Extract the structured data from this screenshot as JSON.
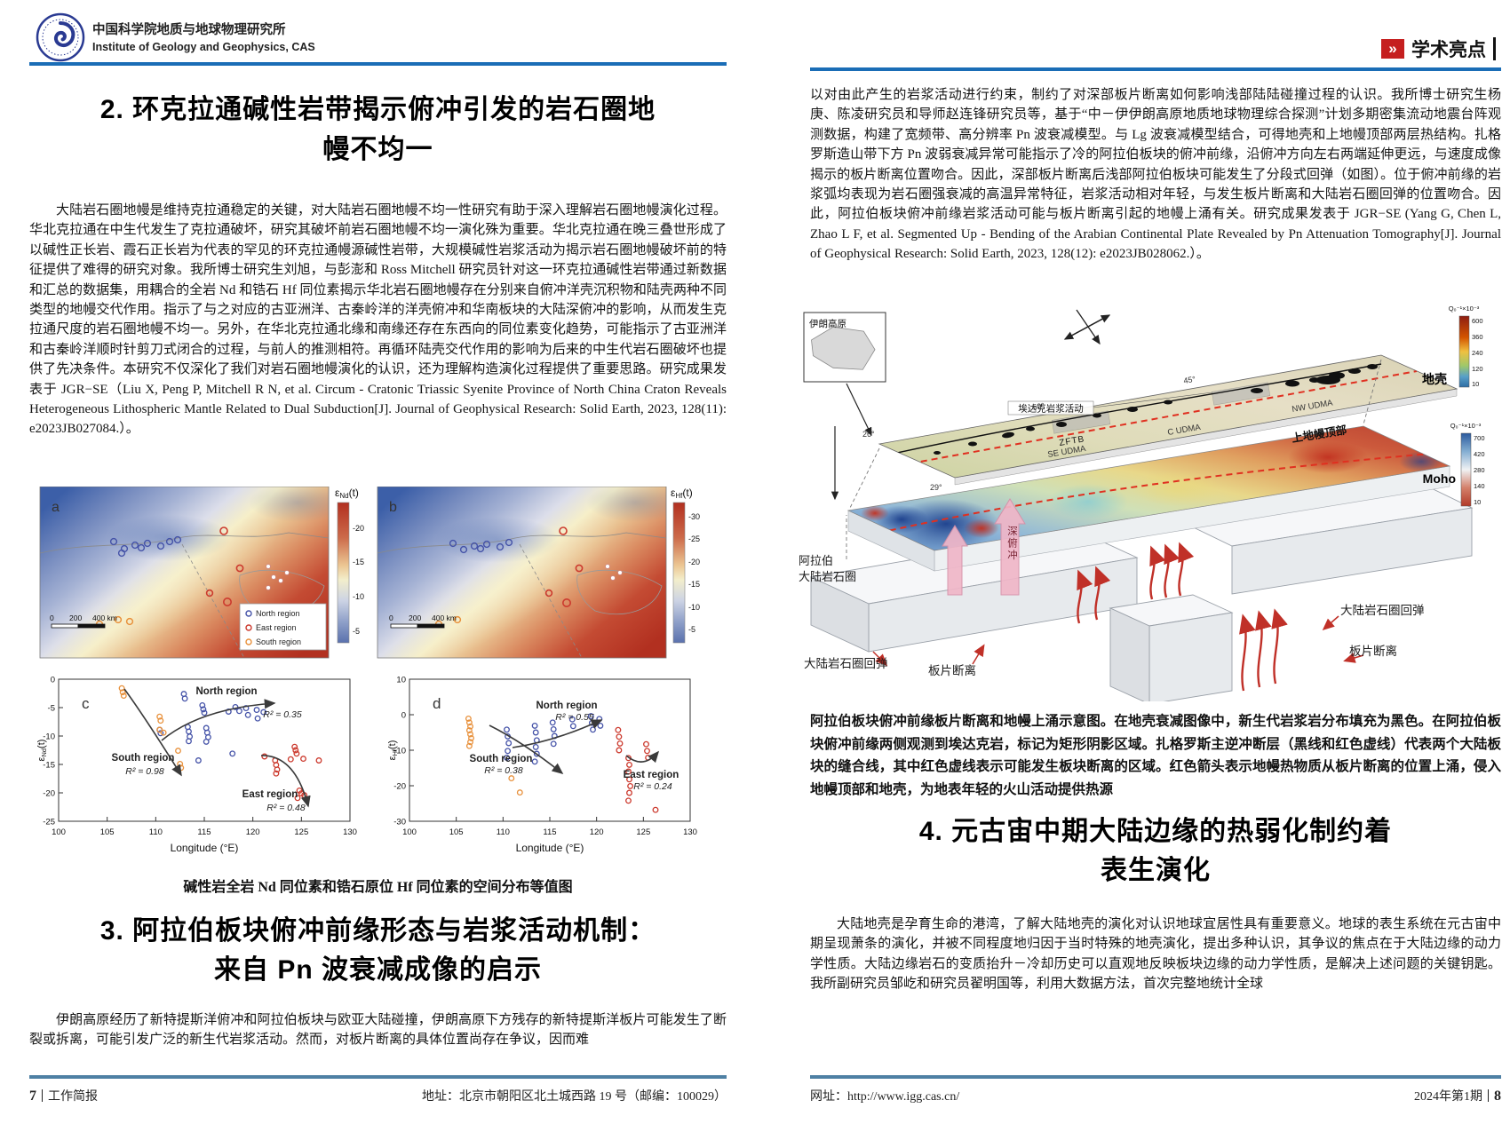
{
  "page_left": {
    "header": {
      "org_cn": "中国科学院地质与地球物理研究所",
      "org_en": "Institute of Geology and Geophysics, CAS"
    },
    "section2": {
      "title_line1": "2. 环克拉通碱性岩带揭示俯冲引发的岩石圈地",
      "title_line2": "幔不均一",
      "paragraph": "大陆岩石圈地幔是维持克拉通稳定的关键，对大陆岩石圈地幔不均一性研究有助于深入理解岩石圈地幔演化过程。华北克拉通在中生代发生了克拉通破坏，研究其破坏前岩石圈地幔不均一演化殊为重要。华北克拉通在晚三叠世形成了以碱性正长岩、霞石正长岩为代表的罕见的环克拉通幔源碱性岩带，大规模碱性岩浆活动为揭示岩石圈地幔破坏前的特征提供了难得的研究对象。我所博士研究生刘旭，与彭澎和 Ross Mitchell 研究员针对这一环克拉通碱性岩带通过新数据和汇总的数据集，用耦合的全岩 Nd 和锆石 Hf 同位素揭示华北岩石圈地幔存在分别来自俯冲洋壳沉积物和陆壳两种不同类型的地幔交代作用。指示了与之对应的古亚洲洋、古秦岭洋的洋壳俯冲和华南板块的大陆深俯冲的影响，从而发生克拉通尺度的岩石圈地幔不均一。另外，在华北克拉通北缘和南缘还存在东西向的同位素变化趋势，可能指示了古亚洲洋和古秦岭洋顺时针剪刀式闭合的过程，与前人的推测相符。再循环陆壳交代作用的影响为后来的中生代岩石圈破坏也提供了先决条件。本研究不仅深化了我们对岩石圈地幔演化的认识，还为理解构造演化过程提供了重要思路。研究成果发表于 JGR−SE（Liu X, Peng P, Mitchell R N, et al. Circum - Cratonic Triassic Syenite Province of North China Craton Reveals Heterogeneous Lithospheric Mantle Related to Dual Subduction[J]. Journal of Geophysical Research: Solid Earth, 2023, 128(11): e2023JB027084.）。"
    },
    "figure": {
      "panel_a": "a",
      "panel_b": "b",
      "panel_c": "c",
      "panel_d": "d",
      "colorbar_a": {
        "ylabel_parts": {
          "eps": "ε",
          "sub": "Nd",
          "t": "(t)"
        },
        "ticks": [
          "-20",
          "-15",
          "-10",
          "-5"
        ]
      },
      "colorbar_b": {
        "ylabel_parts": {
          "eps": "ε",
          "sub": "Hf",
          "t": "(t)"
        },
        "ticks": [
          "-30",
          "-25",
          "-20",
          "-15",
          "-10",
          "-5"
        ]
      },
      "legend": {
        "north": "North region",
        "east": "East region",
        "south": "South region"
      },
      "scalebar": {
        "t0": "0",
        "t200": "200",
        "t400": "400 km"
      },
      "xlabel": "Longitude (°E)",
      "ylabel_c_parts": {
        "eps": "ε",
        "sub": "Nd",
        "t": "(t)"
      },
      "ylabel_d_parts": {
        "eps": "ε",
        "sub": "Hf",
        "t": "(t)"
      },
      "annotations_c": {
        "north": "North region",
        "north_r2": "R² = 0.35",
        "south": "South region",
        "south_r2": "R² = 0.98",
        "east": "East region",
        "east_r2": "R² = 0.48"
      },
      "annotations_d": {
        "north": "North region",
        "north_r2": "R² = 0.55",
        "south": "South region",
        "south_r2": "R² = 0.38",
        "east": "East region",
        "east_r2": "R² = 0.24"
      }
    },
    "figure_caption": "碱性岩全岩 Nd 同位素和锆石原位 Hf 同位素的空间分布等值图",
    "section3": {
      "title_line1": "3. 阿拉伯板块俯冲前缘形态与岩浆活动机制：",
      "title_line2": "来自 Pn 波衰减成像的启示",
      "paragraph": "伊朗高原经历了新特提斯洋俯冲和阿拉伯板块与欧亚大陆碰撞，伊朗高原下方残存的新特提斯洋板片可能发生了断裂或拆离，可能引发广泛的新生代岩浆活动。然而，对板片断离的具体位置尚存在争议，因而难"
    },
    "footer": {
      "page_no": "7",
      "label": "工作简报",
      "address": "地址：北京市朝阳区北土城西路 19 号（邮编：100029）"
    }
  },
  "page_right": {
    "header": {
      "badge_glyph": "»",
      "label": "学术亮点"
    },
    "paragraph1": "以对由此产生的岩浆活动进行约束，制约了对深部板片断离如何影响浅部陆陆碰撞过程的认识。我所博士研究生杨庚、陈凌研究员和导师赵连锋研究员等，基于“中－伊伊朗高原地质地球物理综合探测”计划多期密集流动地震台阵观测数据，构建了宽频带、高分辨率 Pn 波衰减模型。与 Lg 波衰减模型结合，可得地壳和上地幔顶部两层热结构。扎格罗斯造山带下方 Pn 波弱衰减异常可能指示了冷的阿拉伯板块的俯冲前缘，沿俯冲方向左右两端延伸更远，与速度成像揭示的板片断离位置吻合。因此，深部板片断离后浅部阿拉伯板块可能发生了分段式回弹（如图）。位于俯冲前缘的岩浆弧均表现为岩石圈强衰减的高温异常特征，岩浆活动相对年轻，与发生板片断离和大陆岩石圈回弹的位置吻合。因此，阿拉伯板块俯冲前缘岩浆活动可能与板片断离引起的地幔上涌有关。研究成果发表于 JGR−SE (Yang G, Chen L, Zhao L F, et al. Segmented Up - Bending of the Arabian Continental Plate Revealed by Pn Attenuation Tomography[J]. Journal of Geophysical Research: Solid Earth, 2023, 128(12): e2023JB028062.）。",
    "figure3d": {
      "inset_label": "伊朗高原",
      "crust_label": "地壳",
      "zftb": "ZFTB",
      "adakite": "埃达克岩浆活动",
      "udma_se": "SE UDMA",
      "udma_c": "C UDMA",
      "udma_nw": "NW UDMA",
      "moho": "Moho",
      "mantle_top": "上地幔顶部",
      "lith_line1": "阿拉伯",
      "lith_line2": "大陆岩石圈",
      "deep_sub": "深俯冲",
      "rebound_left": "大陆岩石圈回弹",
      "breakoff_left": "板片断离",
      "rebound_right": "大陆岩石圈回弹",
      "breakoff_right": "板片断离",
      "lon50": "50°",
      "lon45": "45°",
      "lat26": "26°",
      "lat29": "29°",
      "cbar_crust": {
        "title": "Q₀⁻¹×10⁻³",
        "ticks": [
          "600",
          "360",
          "240",
          "120",
          "10"
        ]
      },
      "cbar_mantle": {
        "title": "Q₀⁻¹×10⁻³",
        "ticks": [
          "700",
          "420",
          "280",
          "140",
          "10"
        ]
      }
    },
    "figure_caption": "阿拉伯板块俯冲前缘板片断离和地幔上涌示意图。在地壳衰减图像中，新生代岩浆岩分布填充为黑色。在阿拉伯板块俯冲前缘两侧观测到埃达克岩，标记为矩形阴影区域。扎格罗斯主逆冲断层（黑线和红色虚线）代表两个大陆板块的缝合线，其中红色虚线表示可能发生板块断离的区域。红色箭头表示地幔热物质从板片断离的位置上涌，侵入地幔顶部和地壳，为地表年轻的火山活动提供热源",
    "section4": {
      "title_line1": "4. 元古宙中期大陆边缘的热弱化制约着",
      "title_line2": "表生演化",
      "paragraph": "大陆地壳是孕育生命的港湾，了解大陆地壳的演化对认识地球宜居性具有重要意义。地球的表生系统在元古宙中期呈现萧条的演化，并被不同程度地归因于当时特殊的地壳演化，提出多种认识，其争议的焦点在于大陆边缘的动力学性质。大陆边缘岩石的变质抬升－冷却历史可以直观地反映板块边缘的动力学性质，是解决上述问题的关键钥匙。我所副研究员邹屹和研究员翟明国等，利用大数据方法，首次完整地统计全球"
    },
    "footer": {
      "url": "网址：http://www.igg.cas.cn/",
      "issue": "2024年第1期",
      "page_no": "8"
    }
  },
  "chart_data": [
    {
      "type": "heatmap",
      "panel": "a",
      "variable": "εNd(t)",
      "colorbar_ticks": [
        -20,
        -15,
        -10,
        -5
      ],
      "legend": [
        "North region",
        "East region",
        "South region"
      ],
      "scalebar_km": [
        0,
        200,
        400
      ],
      "note": "spatial contour map of whole-rock Nd isotopes, blue(-low) to red(-high negative)"
    },
    {
      "type": "heatmap",
      "panel": "b",
      "variable": "εHf(t)",
      "colorbar_ticks": [
        -30,
        -25,
        -20,
        -15,
        -10,
        -5
      ],
      "scalebar_km": [
        0,
        200,
        400
      ],
      "note": "spatial contour map of zircon Hf isotopes"
    },
    {
      "type": "scatter",
      "panel": "c",
      "xlabel": "Longitude (°E)",
      "ylabel": "εNd(t)",
      "xlim": [
        100,
        130
      ],
      "ylim": [
        0,
        -25
      ],
      "xticks": [
        100,
        105,
        110,
        115,
        120,
        125,
        130
      ],
      "yticks": [
        0,
        -5,
        -10,
        -15,
        -20,
        -25
      ],
      "series": [
        {
          "name": "North region",
          "color": "#4553a8",
          "r2": 0.35,
          "points": [
            [
              110.4,
              -8.9
            ],
            [
              110.5,
              -9.5
            ],
            [
              113.3,
              -8.4
            ],
            [
              113.4,
              -9.2
            ],
            [
              113.5,
              -10.1
            ],
            [
              113.4,
              -10.9
            ],
            [
              115.2,
              -8.6
            ],
            [
              115.3,
              -9.4
            ],
            [
              115.4,
              -10.2
            ],
            [
              115.2,
              -11.0
            ],
            [
              112.9,
              -2.6
            ],
            [
              113.0,
              -3.4
            ],
            [
              114.8,
              -4.6
            ],
            [
              114.9,
              -5.3
            ],
            [
              115.0,
              -5.9
            ],
            [
              117.5,
              -5.7
            ],
            [
              118.2,
              -4.9
            ],
            [
              118.6,
              -5.6
            ],
            [
              119.3,
              -5.1
            ],
            [
              119.5,
              -6.3
            ],
            [
              120.4,
              -5.4
            ],
            [
              120.5,
              -6.9
            ],
            [
              121.1,
              -5.8
            ],
            [
              114.4,
              -14.3
            ],
            [
              117.9,
              -13.1
            ]
          ]
        },
        {
          "name": "South region",
          "color": "#e8913c",
          "r2": 0.98,
          "points": [
            [
              106.5,
              -1.6
            ],
            [
              106.6,
              -2.3
            ],
            [
              106.7,
              -2.9
            ],
            [
              110.4,
              -6.6
            ],
            [
              110.5,
              -7.3
            ],
            [
              110.4,
              -8.9
            ],
            [
              110.8,
              -9.4
            ],
            [
              112.3,
              -12.6
            ],
            [
              112.5,
              -14.9
            ],
            [
              112.6,
              -15.6
            ]
          ]
        },
        {
          "name": "East region",
          "color": "#cc3a2e",
          "r2": 0.48,
          "points": [
            [
              121.2,
              -13.6
            ],
            [
              122.3,
              -14.3
            ],
            [
              122.4,
              -15.1
            ],
            [
              122.5,
              -15.9
            ],
            [
              122.4,
              -16.6
            ],
            [
              124.3,
              -11.9
            ],
            [
              124.4,
              -12.5
            ],
            [
              124.5,
              -13.1
            ],
            [
              123.9,
              -14.1
            ],
            [
              125.2,
              -14.0
            ],
            [
              126.8,
              -14.3
            ],
            [
              124.8,
              -19.6
            ],
            [
              125.0,
              -20.1
            ],
            [
              125.3,
              -20.4
            ],
            [
              124.6,
              -20.9
            ]
          ]
        }
      ]
    },
    {
      "type": "scatter",
      "panel": "d",
      "xlabel": "Longitude (°E)",
      "ylabel": "εHf(t)",
      "xlim": [
        100,
        130
      ],
      "ylim": [
        10,
        -30
      ],
      "xticks": [
        100,
        105,
        110,
        115,
        120,
        125,
        130
      ],
      "yticks": [
        10,
        0,
        -10,
        -20,
        -30
      ],
      "series": [
        {
          "name": "North region",
          "color": "#4553a8",
          "r2": 0.55,
          "points": [
            [
              110.4,
              -4.2
            ],
            [
              110.5,
              -6.1
            ],
            [
              110.6,
              -8.0
            ],
            [
              110.5,
              -10.2
            ],
            [
              110.4,
              -12.1
            ],
            [
              113.4,
              -3.1
            ],
            [
              113.5,
              -5.0
            ],
            [
              113.6,
              -7.2
            ],
            [
              113.5,
              -9.1
            ],
            [
              113.6,
              -11.0
            ],
            [
              113.4,
              -13.2
            ],
            [
              115.3,
              -2.2
            ],
            [
              115.4,
              -4.1
            ],
            [
              115.5,
              -6.0
            ],
            [
              115.4,
              -8.2
            ],
            [
              117.4,
              -1.3
            ],
            [
              117.5,
              -3.2
            ],
            [
              119.4,
              -0.4
            ],
            [
              119.5,
              -2.3
            ],
            [
              119.6,
              -4.2
            ],
            [
              120.3,
              -1.2
            ],
            [
              120.4,
              -3.1
            ]
          ]
        },
        {
          "name": "South region",
          "color": "#e8913c",
          "r2": 0.38,
          "points": [
            [
              106.3,
              -1.1
            ],
            [
              106.4,
              -2.2
            ],
            [
              106.5,
              -3.3
            ],
            [
              106.4,
              -4.4
            ],
            [
              106.5,
              -5.5
            ],
            [
              106.6,
              -6.6
            ],
            [
              106.5,
              -7.7
            ],
            [
              106.4,
              -8.8
            ],
            [
              110.9,
              -17.9
            ],
            [
              111.8,
              -21.9
            ]
          ]
        },
        {
          "name": "East region",
          "color": "#cc3a2e",
          "r2": 0.24,
          "points": [
            [
              122.3,
              -4.3
            ],
            [
              122.4,
              -6.2
            ],
            [
              122.5,
              -8.1
            ],
            [
              122.4,
              -10.0
            ],
            [
              123.4,
              -12.2
            ],
            [
              123.5,
              -14.1
            ],
            [
              123.4,
              -16.0
            ],
            [
              123.5,
              -18.2
            ],
            [
              123.6,
              -20.1
            ],
            [
              123.5,
              -22.0
            ],
            [
              123.4,
              -24.2
            ],
            [
              125.3,
              -8.3
            ],
            [
              125.4,
              -10.2
            ],
            [
              125.5,
              -12.1
            ],
            [
              126.3,
              -26.8
            ]
          ]
        }
      ]
    }
  ]
}
